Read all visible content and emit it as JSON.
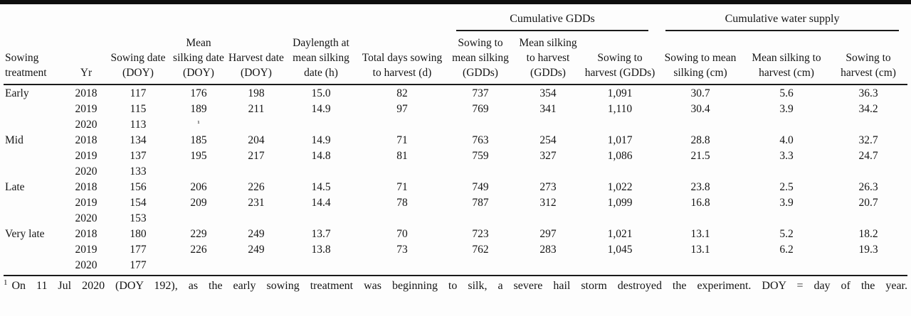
{
  "table": {
    "col_groups": [
      {
        "label": "",
        "span": 7
      },
      {
        "label": "Cumulative GDDs",
        "span": 3
      },
      {
        "label": "Cumulative water supply",
        "span": 3
      }
    ],
    "columns": [
      {
        "id": "sowing-treatment",
        "label": "Sowing treatment"
      },
      {
        "id": "year",
        "label": "Yr"
      },
      {
        "id": "sowing-date",
        "label": "Sowing date (DOY)"
      },
      {
        "id": "mean-silking-date",
        "label": "Mean silking date (DOY)"
      },
      {
        "id": "harvest-date",
        "label": "Harvest date (DOY)"
      },
      {
        "id": "daylength-at-mean-silking",
        "label": "Daylength at mean silking date (h)"
      },
      {
        "id": "total-days-sowing-to-harvest",
        "label": "Total days sowing to harvest (d)"
      },
      {
        "id": "gdd-sowing-to-mean-silking",
        "label": "Sowing to mean silking (GDDs)"
      },
      {
        "id": "gdd-mean-silking-to-harvest",
        "label": "Mean silking to harvest (GDDs)"
      },
      {
        "id": "gdd-sowing-to-harvest",
        "label": "Sowing to harvest (GDDs)"
      },
      {
        "id": "water-sowing-to-mean-silking",
        "label": "Sowing to mean silking (cm)"
      },
      {
        "id": "water-mean-silking-to-harvest",
        "label": "Mean silking to harvest (cm)"
      },
      {
        "id": "water-sowing-to-harvest",
        "label": "Sowing to harvest (cm)"
      }
    ],
    "rows": [
      [
        "Early",
        "2018",
        "117",
        "176",
        "198",
        "15.0",
        "82",
        "737",
        "354",
        "1,091",
        "30.7",
        "5.6",
        "36.3"
      ],
      [
        "",
        "2019",
        "115",
        "189",
        "211",
        "14.9",
        "97",
        "769",
        "341",
        "1,110",
        "30.4",
        "3.9",
        "34.2"
      ],
      [
        "",
        "2020",
        "113",
        "¹",
        "",
        "",
        "",
        "",
        "",
        "",
        "",
        "",
        ""
      ],
      [
        "Mid",
        "2018",
        "134",
        "185",
        "204",
        "14.9",
        "71",
        "763",
        "254",
        "1,017",
        "28.8",
        "4.0",
        "32.7"
      ],
      [
        "",
        "2019",
        "137",
        "195",
        "217",
        "14.8",
        "81",
        "759",
        "327",
        "1,086",
        "21.5",
        "3.3",
        "24.7"
      ],
      [
        "",
        "2020",
        "133",
        "",
        "",
        "",
        "",
        "",
        "",
        "",
        "",
        "",
        ""
      ],
      [
        "Late",
        "2018",
        "156",
        "206",
        "226",
        "14.5",
        "71",
        "749",
        "273",
        "1,022",
        "23.8",
        "2.5",
        "26.3"
      ],
      [
        "",
        "2019",
        "154",
        "209",
        "231",
        "14.4",
        "78",
        "787",
        "312",
        "1,099",
        "16.8",
        "3.9",
        "20.7"
      ],
      [
        "",
        "2020",
        "153",
        "",
        "",
        "",
        "",
        "",
        "",
        "",
        "",
        "",
        ""
      ],
      [
        "Very late",
        "2018",
        "180",
        "229",
        "249",
        "13.7",
        "70",
        "723",
        "297",
        "1,021",
        "13.1",
        "5.2",
        "18.2"
      ],
      [
        "",
        "2019",
        "177",
        "226",
        "249",
        "13.8",
        "73",
        "762",
        "283",
        "1,045",
        "13.1",
        "6.2",
        "19.3"
      ],
      [
        "",
        "2020",
        "177",
        "",
        "",
        "",
        "",
        "",
        "",
        "",
        "",
        "",
        ""
      ]
    ],
    "footnote": {
      "marker": "1",
      "text": "On 11 Jul 2020 (DOY 192), as the early sowing treatment was beginning to silk, a severe hail storm destroyed the experiment. DOY = day of the year."
    },
    "colors": {
      "rule": "#1a1a1a",
      "text": "#151515",
      "background": "#fdfdfd"
    }
  }
}
